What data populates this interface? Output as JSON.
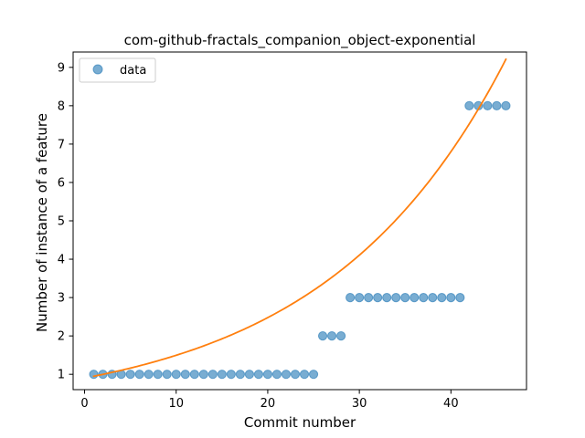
{
  "chart_data": {
    "type": "scatter",
    "title": "com-github-fractals_companion_object-exponential",
    "xlabel": "Commit number",
    "ylabel": "Number of instance of a feature",
    "xlim": [
      -1.25,
      48.25
    ],
    "ylim": [
      0.6,
      9.4
    ],
    "x_ticks": [
      0,
      10,
      20,
      30,
      40
    ],
    "y_ticks": [
      1,
      2,
      3,
      4,
      5,
      6,
      7,
      8,
      9
    ],
    "grid": false,
    "legend_position": "upper left",
    "series": [
      {
        "name": "data",
        "kind": "scatter",
        "color": "#1f77b4",
        "x": [
          1,
          2,
          3,
          4,
          5,
          6,
          7,
          8,
          9,
          10,
          11,
          12,
          13,
          14,
          15,
          16,
          17,
          18,
          19,
          20,
          21,
          22,
          23,
          24,
          25,
          26,
          27,
          28,
          29,
          30,
          31,
          32,
          33,
          34,
          35,
          36,
          37,
          38,
          39,
          40,
          41,
          42,
          43,
          44,
          45,
          46
        ],
        "y": [
          1,
          1,
          1,
          1,
          1,
          1,
          1,
          1,
          1,
          1,
          1,
          1,
          1,
          1,
          1,
          1,
          1,
          1,
          1,
          1,
          1,
          1,
          1,
          1,
          1,
          2,
          2,
          2,
          3,
          3,
          3,
          3,
          3,
          3,
          3,
          3,
          3,
          3,
          3,
          3,
          3,
          8,
          8,
          8,
          8,
          8
        ]
      },
      {
        "kind": "line",
        "color": "#ff7f0e",
        "fit": "exponential",
        "a": 0.9024,
        "b": 0.0505,
        "x_range": [
          1,
          46
        ]
      }
    ]
  }
}
